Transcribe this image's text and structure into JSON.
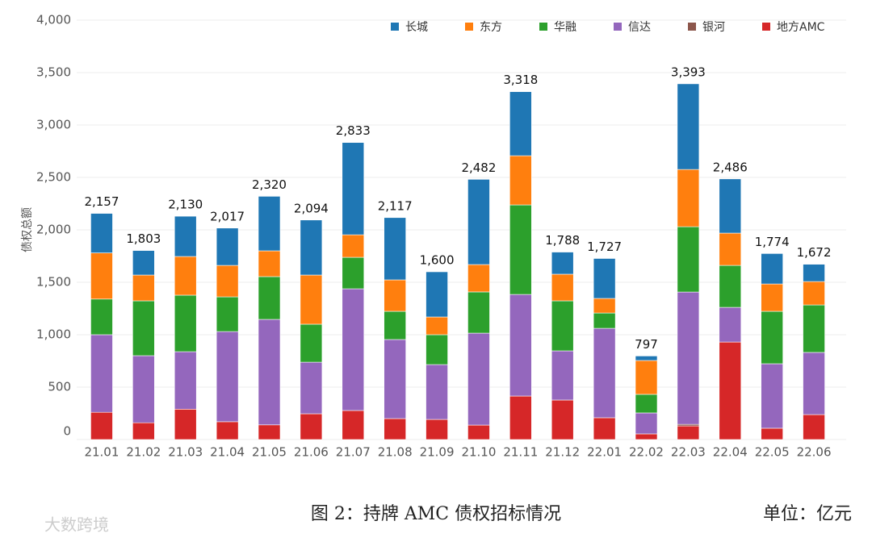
{
  "chart_data": {
    "type": "stacked_bar",
    "y_label": "债权总额",
    "caption": "图 2：持牌 AMC 债权招标情况",
    "unit": "单位：亿元",
    "watermark": "大数跨境",
    "legend": "upper right",
    "grid": true,
    "ylim": [
      0,
      4000
    ],
    "yticks": [
      0,
      500,
      {
        "value": 1000,
        "label": "1,000"
      },
      {
        "value": 1500,
        "label": "1,500"
      },
      {
        "value": 2000,
        "label": "2,000"
      },
      {
        "value": 2500,
        "label": "2,500"
      },
      {
        "value": 3000,
        "label": "3,000"
      },
      {
        "value": 3500,
        "label": "3,500"
      },
      {
        "value": 4000,
        "label": "4,000"
      }
    ],
    "categories": [
      "21.01",
      "21.02",
      "21.03",
      "21.04",
      "21.05",
      "21.06",
      "21.07",
      "21.08",
      "21.09",
      "21.10",
      "21.11",
      "21.12",
      "22.01",
      "22.02",
      "22.03",
      "22.04",
      "22.05",
      "22.06"
    ],
    "series": [
      {
        "name": "长城",
        "color": "#1f77b4",
        "values": [
          377,
          234,
          384,
          356,
          520,
          525,
          880,
          594,
          431,
          813,
          611,
          211,
          381,
          43,
          817,
          517,
          290,
          165
        ]
      },
      {
        "name": "东方",
        "color": "#ff7f0e",
        "values": [
          440,
          246,
          369,
          300,
          246,
          469,
          215,
          300,
          169,
          261,
          469,
          254,
          139,
          323,
          546,
          308,
          261,
          223
        ]
      },
      {
        "name": "华融",
        "color": "#2ca02c",
        "values": [
          340,
          523,
          539,
          331,
          408,
          362,
          300,
          269,
          285,
          393,
          854,
          477,
          146,
          177,
          623,
          400,
          500,
          453
        ]
      },
      {
        "name": "信达",
        "color": "#9467bd",
        "values": [
          740,
          640,
          548,
          860,
          1006,
          492,
          1161,
          754,
          523,
          877,
          969,
          469,
          853,
          200,
          1262,
          331,
          615,
          593
        ]
      },
      {
        "name": "银河",
        "color": "#8c564b",
        "values": [
          0,
          0,
          0,
          0,
          0,
          0,
          0,
          0,
          0,
          0,
          0,
          0,
          0,
          0,
          15,
          0,
          0,
          0
        ]
      },
      {
        "name": "地方AMC",
        "color": "#d62728",
        "values": [
          260,
          160,
          290,
          170,
          140,
          246,
          277,
          200,
          192,
          138,
          415,
          377,
          208,
          54,
          130,
          930,
          108,
          238
        ]
      }
    ],
    "totals": [
      2157,
      1803,
      2130,
      2017,
      2320,
      2094,
      2833,
      2117,
      1600,
      2482,
      3318,
      1788,
      1727,
      797,
      3393,
      2486,
      1774,
      1672
    ],
    "total_labels": [
      "2,157",
      "1,803",
      "2,130",
      "2,017",
      "2,320",
      "2,094",
      "2,833",
      "2,117",
      "1,600",
      "2,482",
      "3,318",
      "1,788",
      "1,727",
      "797",
      "3,393",
      "2,486",
      "1,774",
      "1,672"
    ]
  }
}
